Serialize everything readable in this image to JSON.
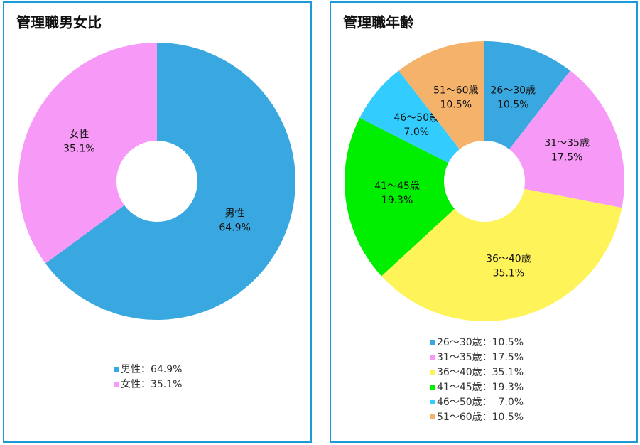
{
  "chart_data": [
    {
      "type": "pie",
      "title": "管理職男女比",
      "categories": [
        "男性",
        "女性"
      ],
      "values": [
        64.9,
        35.1
      ],
      "value_labels": [
        "64.9%",
        "35.1%"
      ],
      "colors": [
        "#3aa8e0",
        "#f79af7"
      ],
      "legend": [
        "男性：64.9%",
        "女性：35.1%"
      ]
    },
    {
      "type": "pie",
      "title": "管理職年齢",
      "categories": [
        "26～30歳",
        "31～35歳",
        "36～40歳",
        "41～45歳",
        "46～50歳",
        "51～60歳"
      ],
      "values": [
        10.5,
        17.5,
        35.1,
        19.3,
        7.0,
        10.5
      ],
      "value_labels": [
        "10.5%",
        "17.5%",
        "35.1%",
        "19.3%",
        "7.0%",
        "10.5%"
      ],
      "colors": [
        "#3aa8e0",
        "#f79af7",
        "#fff35a",
        "#00ee00",
        "#33ccff",
        "#f5b26b"
      ],
      "legend": [
        "26～30歳：10.5%",
        "31～35歳：17.5%",
        "36～40歳：35.1%",
        "41～45歳：19.3%",
        "46～50歳：  7.0%",
        "51～60歳：10.5%"
      ]
    }
  ]
}
